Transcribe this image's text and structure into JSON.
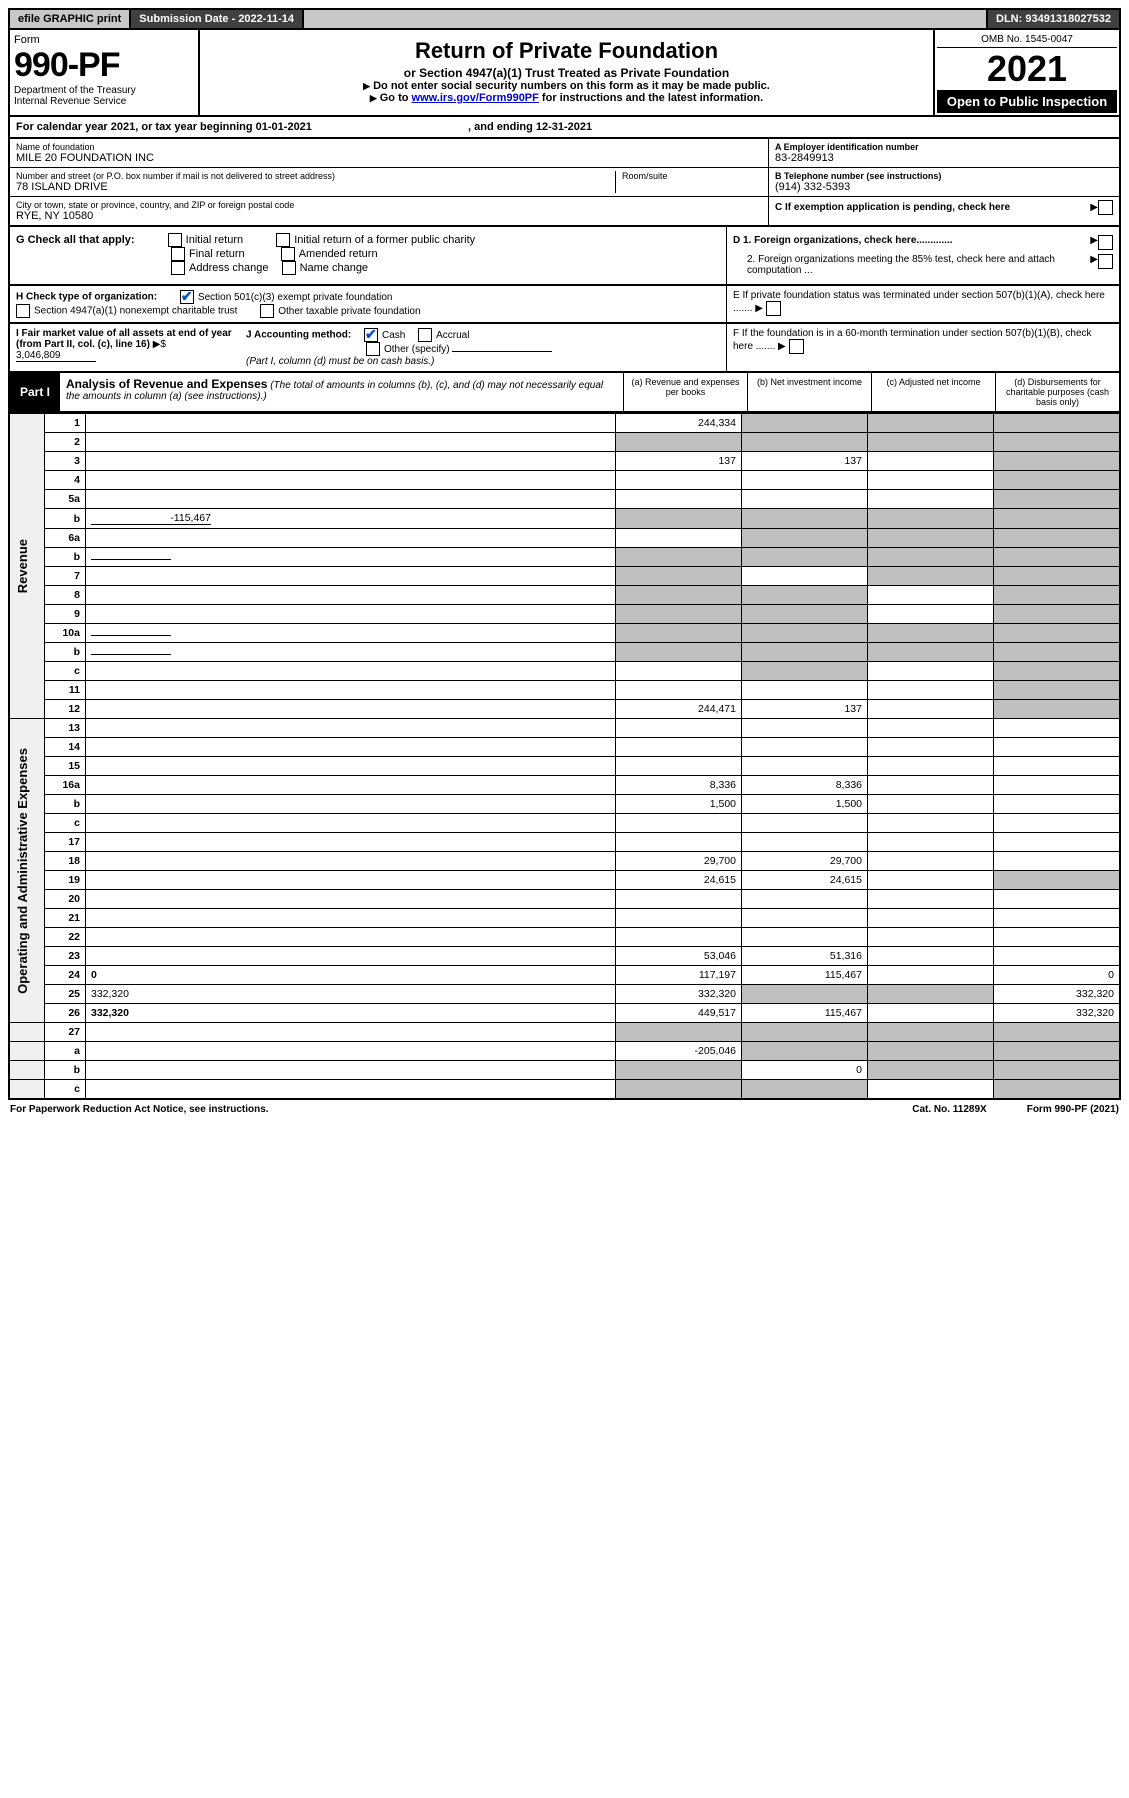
{
  "topbar": {
    "efile": "efile GRAPHIC print",
    "sub_label": "Submission Date - 2022-11-14",
    "dln": "DLN: 93491318027532"
  },
  "header": {
    "form_word": "Form",
    "form_num": "990-PF",
    "dept": "Department of the Treasury",
    "irs": "Internal Revenue Service",
    "title": "Return of Private Foundation",
    "subtitle": "or Section 4947(a)(1) Trust Treated as Private Foundation",
    "note1": "Do not enter social security numbers on this form as it may be made public.",
    "note2_pre": "Go to ",
    "note2_link": "www.irs.gov/Form990PF",
    "note2_post": " for instructions and the latest information.",
    "omb": "OMB No. 1545-0047",
    "year": "2021",
    "open": "Open to Public Inspection"
  },
  "cal": {
    "text_a": "For calendar year 2021, or tax year beginning 01-01-2021",
    "text_b": ", and ending 12-31-2021"
  },
  "info": {
    "name_lbl": "Name of foundation",
    "name": "MILE 20 FOUNDATION INC",
    "addr_lbl": "Number and street (or P.O. box number if mail is not delivered to street address)",
    "addr": "78 ISLAND DRIVE",
    "room_lbl": "Room/suite",
    "city_lbl": "City or town, state or province, country, and ZIP or foreign postal code",
    "city": "RYE, NY  10580",
    "a_lbl": "A Employer identification number",
    "a_val": "83-2849913",
    "b_lbl": "B Telephone number (see instructions)",
    "b_val": "(914) 332-5393",
    "c_lbl": "C If exemption application is pending, check here"
  },
  "g": {
    "lbl": "G Check all that apply:",
    "o1": "Initial return",
    "o2": "Final return",
    "o3": "Address change",
    "o4": "Initial return of a former public charity",
    "o5": "Amended return",
    "o6": "Name change"
  },
  "d": {
    "d1": "D 1. Foreign organizations, check here.............",
    "d2": "2. Foreign organizations meeting the 85% test, check here and attach computation ...",
    "e": "E  If private foundation status was terminated under section 507(b)(1)(A), check here .......",
    "f": "F  If the foundation is in a 60-month termination under section 507(b)(1)(B), check here ......."
  },
  "h": {
    "lbl": "H Check type of organization:",
    "o1": "Section 501(c)(3) exempt private foundation",
    "o2": "Section 4947(a)(1) nonexempt charitable trust",
    "o3": "Other taxable private foundation"
  },
  "i": {
    "lbl": "I Fair market value of all assets at end of year (from Part II, col. (c), line 16)",
    "val": "3,046,809"
  },
  "j": {
    "lbl": "J Accounting method:",
    "o1": "Cash",
    "o2": "Accrual",
    "o3": "Other (specify)",
    "note": "(Part I, column (d) must be on cash basis.)"
  },
  "part1": {
    "tag": "Part I",
    "ttl": "Analysis of Revenue and Expenses",
    "note": "(The total of amounts in columns (b), (c), and (d) may not necessarily equal the amounts in column (a) (see instructions).)",
    "col_a": "(a)  Revenue and expenses per books",
    "col_b": "(b)  Net investment income",
    "col_c": "(c)  Adjusted net income",
    "col_d": "(d)  Disbursements for charitable purposes (cash basis only)"
  },
  "side": {
    "rev": "Revenue",
    "exp": "Operating and Administrative Expenses"
  },
  "rows": [
    {
      "n": "1",
      "d": "",
      "a": "244,334",
      "b": "",
      "c": "",
      "shade_b": true,
      "shade_c": true,
      "shade_d": true
    },
    {
      "n": "2",
      "d": "",
      "a": "",
      "b": "",
      "c": "",
      "shade_a": true,
      "shade_b": true,
      "shade_c": true,
      "shade_d": true,
      "bold_not": true
    },
    {
      "n": "3",
      "d": "",
      "a": "137",
      "b": "137",
      "c": "",
      "shade_d": true
    },
    {
      "n": "4",
      "d": "",
      "a": "",
      "b": "",
      "c": "",
      "shade_d": true
    },
    {
      "n": "5a",
      "d": "",
      "a": "",
      "b": "",
      "c": "",
      "shade_d": true
    },
    {
      "n": "b",
      "d": "",
      "a": "",
      "b": "",
      "c": "",
      "inline_val": "-115,467",
      "shade_a": true,
      "shade_b": true,
      "shade_c": true,
      "shade_d": true
    },
    {
      "n": "6a",
      "d": "",
      "a": "",
      "b": "",
      "c": "",
      "shade_b": true,
      "shade_c": true,
      "shade_d": true
    },
    {
      "n": "b",
      "d": "",
      "a": "",
      "b": "",
      "c": "",
      "shade_a": true,
      "shade_b": true,
      "shade_c": true,
      "shade_d": true,
      "inline_blank": true
    },
    {
      "n": "7",
      "d": "",
      "a": "",
      "b": "",
      "c": "",
      "shade_a": true,
      "shade_c": true,
      "shade_d": true
    },
    {
      "n": "8",
      "d": "",
      "a": "",
      "b": "",
      "c": "",
      "shade_a": true,
      "shade_b": true,
      "shade_d": true
    },
    {
      "n": "9",
      "d": "",
      "a": "",
      "b": "",
      "c": "",
      "shade_a": true,
      "shade_b": true,
      "shade_d": true
    },
    {
      "n": "10a",
      "d": "",
      "a": "",
      "b": "",
      "c": "",
      "shade_a": true,
      "shade_b": true,
      "shade_c": true,
      "shade_d": true,
      "inline_blank": true
    },
    {
      "n": "b",
      "d": "",
      "a": "",
      "b": "",
      "c": "",
      "shade_a": true,
      "shade_b": true,
      "shade_c": true,
      "shade_d": true,
      "inline_blank": true
    },
    {
      "n": "c",
      "d": "",
      "a": "",
      "b": "",
      "c": "",
      "shade_b": true,
      "shade_d": true
    },
    {
      "n": "11",
      "d": "",
      "a": "",
      "b": "",
      "c": "",
      "shade_d": true
    },
    {
      "n": "12",
      "d": "",
      "a": "244,471",
      "b": "137",
      "c": "",
      "bold": true,
      "shade_d": true
    }
  ],
  "exp_rows": [
    {
      "n": "13",
      "d": "",
      "a": "",
      "b": "",
      "c": ""
    },
    {
      "n": "14",
      "d": "",
      "a": "",
      "b": "",
      "c": ""
    },
    {
      "n": "15",
      "d": "",
      "a": "",
      "b": "",
      "c": ""
    },
    {
      "n": "16a",
      "d": "",
      "a": "8,336",
      "b": "8,336",
      "c": ""
    },
    {
      "n": "b",
      "d": "",
      "a": "1,500",
      "b": "1,500",
      "c": ""
    },
    {
      "n": "c",
      "d": "",
      "a": "",
      "b": "",
      "c": ""
    },
    {
      "n": "17",
      "d": "",
      "a": "",
      "b": "",
      "c": ""
    },
    {
      "n": "18",
      "d": "",
      "a": "29,700",
      "b": "29,700",
      "c": ""
    },
    {
      "n": "19",
      "d": "",
      "a": "24,615",
      "b": "24,615",
      "c": "",
      "shade_d": true
    },
    {
      "n": "20",
      "d": "",
      "a": "",
      "b": "",
      "c": ""
    },
    {
      "n": "21",
      "d": "",
      "a": "",
      "b": "",
      "c": ""
    },
    {
      "n": "22",
      "d": "",
      "a": "",
      "b": "",
      "c": ""
    },
    {
      "n": "23",
      "d": "",
      "a": "53,046",
      "b": "51,316",
      "c": ""
    },
    {
      "n": "24",
      "d": "0",
      "a": "117,197",
      "b": "115,467",
      "c": "",
      "bold": true
    },
    {
      "n": "25",
      "d": "332,320",
      "a": "332,320",
      "b": "",
      "c": "",
      "shade_b": true,
      "shade_c": true
    },
    {
      "n": "26",
      "d": "332,320",
      "a": "449,517",
      "b": "115,467",
      "c": "",
      "bold": true
    }
  ],
  "bottom_rows": [
    {
      "n": "27",
      "d": "",
      "a": "",
      "b": "",
      "c": "",
      "shade_a": true,
      "shade_b": true,
      "shade_c": true,
      "shade_d": true
    },
    {
      "n": "a",
      "d": "",
      "a": "-205,046",
      "b": "",
      "c": "",
      "bold": true,
      "shade_b": true,
      "shade_c": true,
      "shade_d": true
    },
    {
      "n": "b",
      "d": "",
      "a": "",
      "b": "0",
      "c": "",
      "bold": true,
      "shade_a": true,
      "shade_c": true,
      "shade_d": true
    },
    {
      "n": "c",
      "d": "",
      "a": "",
      "b": "",
      "c": "",
      "bold": true,
      "shade_a": true,
      "shade_b": true,
      "shade_d": true
    }
  ],
  "footer": {
    "left": "For Paperwork Reduction Act Notice, see instructions.",
    "mid": "Cat. No. 11289X",
    "right": "Form 990-PF (2021)"
  }
}
